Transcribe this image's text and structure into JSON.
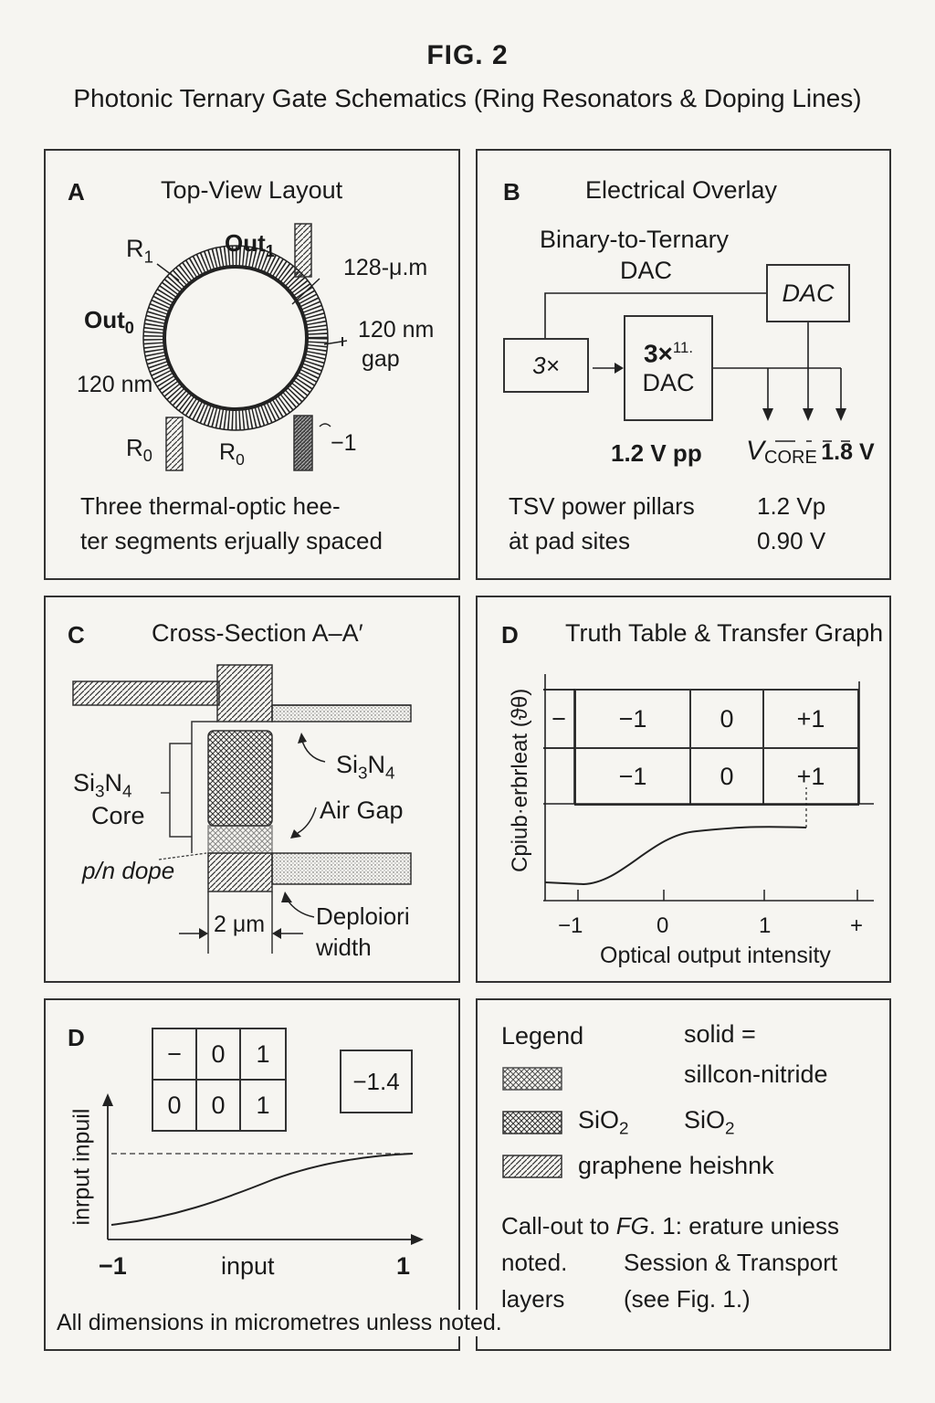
{
  "figure": {
    "title": "FIG. 2",
    "subtitle": "Photonic Ternary Gate Schematics (Ring Resonators & Doping Lines)"
  },
  "panel_a": {
    "label": "A",
    "title": "Top-View Layout",
    "r1": "R",
    "r1_sub": "1",
    "out1": "Out",
    "out1_sub": "1",
    "dim_128": "128-μ.m",
    "out0": "Out",
    "out0_sub": "0",
    "gap_120_line1": "120 nm",
    "gap_120_line2": "gap",
    "left_120": "120 nm",
    "r0_left": "R",
    "r0_left_sub": "0",
    "r0_mid": "R",
    "r0_mid_sub": "0",
    "neg1": "−1",
    "caption_line1": "Three thermal-optic hee-",
    "caption_line2": "ter segments erjually spaced"
  },
  "panel_b": {
    "label": "B",
    "title": "Electrical Overlay",
    "subtitle_line1": "Binary-to-Ternary",
    "subtitle_line2": "DAC",
    "dac_box": "DAC",
    "box_3x": "3×",
    "box_3x11_main": "3×",
    "box_3x11_sup": "11.",
    "box_3x11_line2": "DAC",
    "v_pp": "1.2 V pp",
    "vcore_v": "V",
    "vcore_sub": "CORE",
    "vcore_val": "1.8 V",
    "tsv_line1": "TSV power pillars",
    "tsv_line2": "ȧt pad sites",
    "val1": "1.2 Vp",
    "val2": "0.90 V"
  },
  "panel_c": {
    "label": "C",
    "title": "Cross-Section A–A′",
    "si3n4_right_pre": "Si",
    "si3n4_right_sub1": "3",
    "si3n4_right_mid": "N",
    "si3n4_right_sub2": "4",
    "core_pre": "Si",
    "core_sub1": "3",
    "core_mid": "N",
    "core_sub2": "4",
    "core_line2": "Core",
    "air_gap": "Air  Gap",
    "pn_dope": "p/n dope",
    "width_2um": "2 μm",
    "deploion_line1": "Deploiori",
    "deploion_line2": "width"
  },
  "panel_d1": {
    "label": "D",
    "title": "Truth Table & Transfer Graph",
    "ylabel": "Cpiub·erbrleat  (ϑθ)",
    "row1": [
      "−",
      "−1",
      "0",
      "+1"
    ],
    "row2": [
      "−1",
      "0",
      "+1"
    ],
    "xticks": [
      "−1",
      "0",
      "1",
      "+"
    ],
    "xlabel": "Optical output intensity"
  },
  "panel_d2": {
    "label": "D",
    "table_row1": [
      "−",
      "0",
      "1"
    ],
    "table_row2": [
      "0",
      "0",
      "1"
    ],
    "value_box": "−1.4",
    "ylabel": "inrput inpuil",
    "xlabel": "input",
    "x_left": "−1",
    "x_right": "1",
    "footnote": "All dimensions in micrometres unless  noted."
  },
  "legend": {
    "title": "Legend",
    "solid": "solid =",
    "item1": "sillcon-nitride",
    "item2_left_pre": "SiO",
    "item2_left_sub": "2",
    "item2_right_pre": "SiO",
    "item2_right_sub": "2",
    "item3": "graphene heishnk",
    "callout_pre": "Call-out to ",
    "callout_fg": "FG",
    "callout_post": ". 1: erature uniess",
    "noted": "noted.",
    "session": "Session & Transport",
    "layers": "layers",
    "see_fig": "(see Fig. 1.)"
  }
}
